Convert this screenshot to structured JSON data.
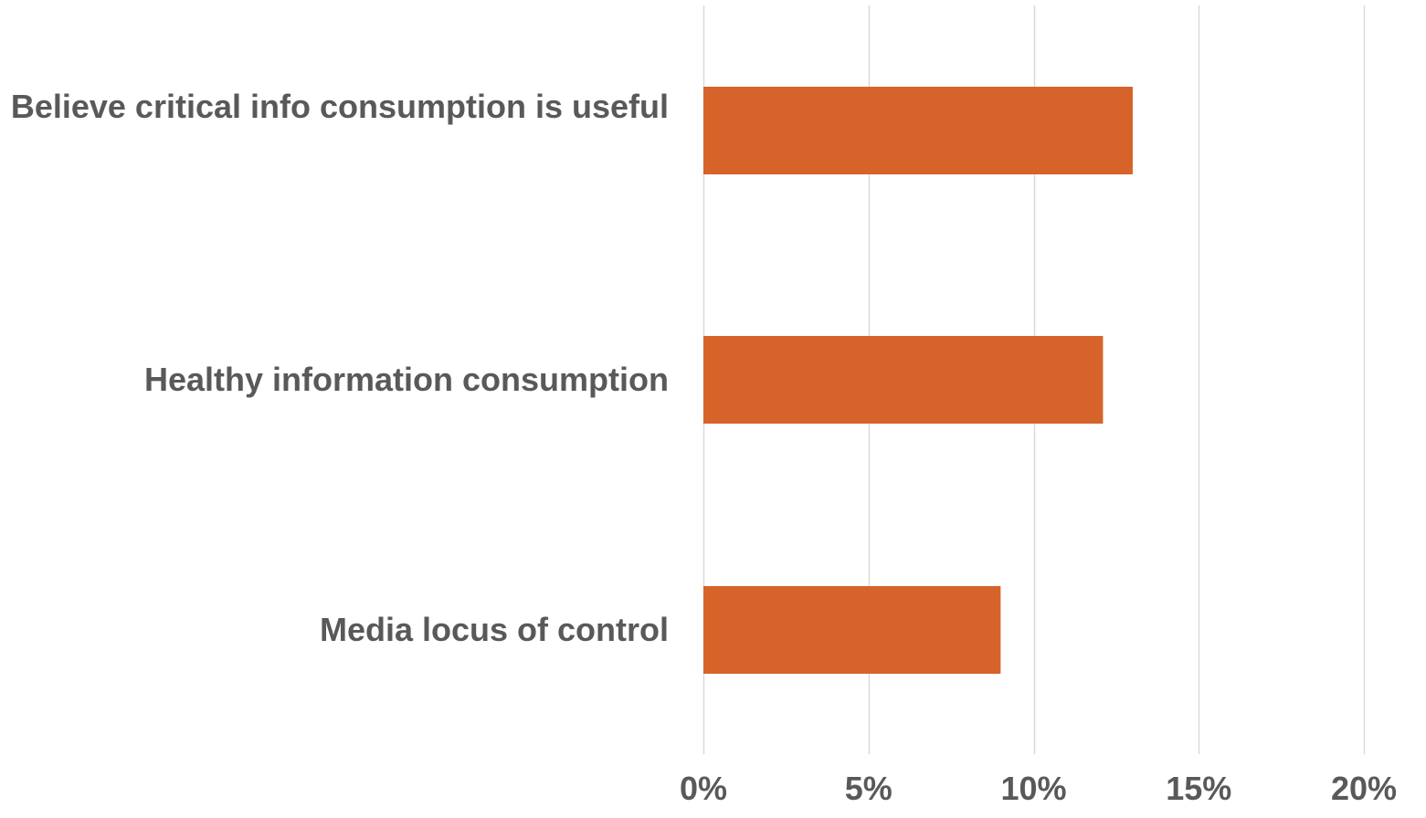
{
  "chart_data": {
    "type": "bar",
    "orientation": "horizontal",
    "categories": [
      "Believe critical info consumption is useful",
      "Healthy information consumption",
      "Media locus of control"
    ],
    "values": [
      13.0,
      12.1,
      9.0
    ],
    "xlim": [
      0,
      20
    ],
    "x_ticks": [
      "0%",
      "5%",
      "10%",
      "15%",
      "20%"
    ],
    "x_tick_values": [
      0,
      5,
      10,
      15,
      20
    ],
    "title": "",
    "xlabel": "",
    "ylabel": "",
    "grid": "vertical",
    "legend": "none",
    "colors": {
      "bar": "#D5632A",
      "grid": "#D9D9D9",
      "text": "#595959"
    }
  }
}
